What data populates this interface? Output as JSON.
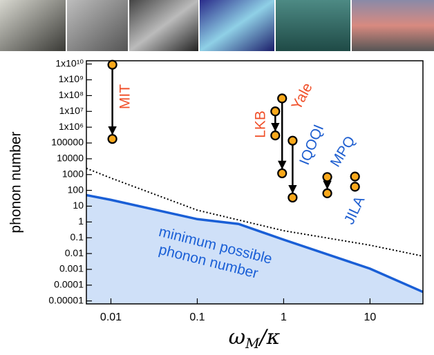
{
  "chart_data": {
    "type": "scatter",
    "ylabel": "phonon number",
    "xlabel": [
      "ω",
      "M",
      "/κ"
    ],
    "log_x": true,
    "log_y": true,
    "xlim": [
      0.0052,
      41
    ],
    "ylim": [
      6.5e-06,
      16000000000
    ],
    "xticks": [
      0.01,
      0.1,
      1,
      10
    ],
    "yticks": [
      {
        "value": 10000000000,
        "label": "1x10¹⁰"
      },
      {
        "value": 1000000000,
        "label": "1x10⁹"
      },
      {
        "value": 100000000,
        "label": "1x10⁸"
      },
      {
        "value": 10000000,
        "label": "1x10⁷"
      },
      {
        "value": 1000000,
        "label": "1x10⁶"
      },
      100000,
      10000,
      1000,
      100,
      10,
      1,
      0.1,
      0.01,
      0.001,
      0.0001,
      1e-05
    ],
    "marker_color": "#f9a81b",
    "series": [
      {
        "name": "MIT",
        "color": "#f0502a",
        "x": [
          0.0104,
          0.0104
        ],
        "values": [
          9000000000,
          180000
        ],
        "arrow": true
      },
      {
        "name": "LKB",
        "color": "#f0502a",
        "x": [
          0.8,
          0.8
        ],
        "values": [
          10000000,
          300000
        ],
        "arrow": true
      },
      {
        "name": "Yale",
        "color": "#f0502a",
        "x": [
          0.96,
          0.96
        ],
        "values": [
          66000000,
          1200
        ],
        "arrow": true
      },
      {
        "name": "IQOQI",
        "color": "#1f5fd0",
        "x": [
          1.27,
          1.27
        ],
        "values": [
          140000,
          35
        ],
        "arrow": true
      },
      {
        "name": "MPQ",
        "color": "#1f5fd0",
        "x": [
          3.2,
          3.2
        ],
        "values": [
          700,
          65
        ],
        "arrow": true
      },
      {
        "name": "JILA",
        "color": "#1f5fd0",
        "x": [
          6.7,
          6.7
        ],
        "values": [
          750,
          170
        ],
        "arrow": false
      }
    ],
    "curves": [
      {
        "name": "dotted-limit",
        "color": "#000000",
        "dashed": true,
        "x": [
          0.0052,
          0.01,
          0.1,
          1,
          10,
          41
        ],
        "values": [
          2500,
          600,
          5.6,
          0.28,
          0.034,
          0.0068
        ]
      },
      {
        "name": "minimum-possible",
        "color": "#1a5fd6",
        "dashed": false,
        "fill": "#cfe0f8",
        "x": [
          0.0052,
          0.01,
          0.1,
          0.3,
          1,
          10,
          41
        ],
        "values": [
          50,
          25,
          1.5,
          0.75,
          0.076,
          0.0011,
          3.7e-05
        ]
      }
    ],
    "annotation": [
      "minimum possible",
      "phonon number"
    ]
  }
}
